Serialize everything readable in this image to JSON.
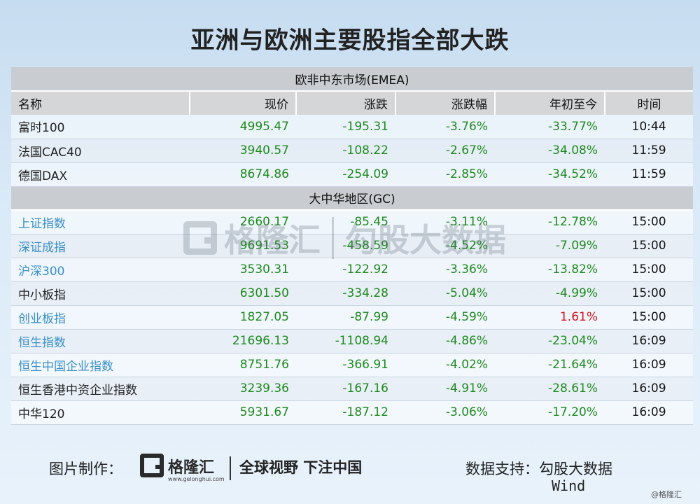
{
  "title": "亚洲与欧洲主要股指全部大跌",
  "sections": [
    {
      "label": "欧非中东市场(EMEA)",
      "rows": [
        {
          "name": "富时100",
          "price": "4995.47",
          "change": "-195.31",
          "pct": "-3.76%",
          "ytd": "-33.77%",
          "time": "10:44",
          "link": false,
          "ytd_red": false
        },
        {
          "name": "法国CAC40",
          "price": "3940.57",
          "change": "-108.22",
          "pct": "-2.67%",
          "ytd": "-34.08%",
          "time": "11:59",
          "link": false,
          "ytd_red": false
        },
        {
          "name": "德国DAX",
          "price": "8674.86",
          "change": "-254.09",
          "pct": "-2.85%",
          "ytd": "-34.52%",
          "time": "11:59",
          "link": false,
          "ytd_red": false
        }
      ]
    },
    {
      "label": "大中华地区(GC)",
      "rows": [
        {
          "name": "上证指数",
          "price": "2660.17",
          "change": "-85.45",
          "pct": "-3.11%",
          "ytd": "-12.78%",
          "time": "15:00",
          "link": true,
          "ytd_red": false
        },
        {
          "name": "深证成指",
          "price": "9691.53",
          "change": "-458.59",
          "pct": "-4.52%",
          "ytd": "-7.09%",
          "time": "15:00",
          "link": true,
          "ytd_red": false
        },
        {
          "name": "沪深300",
          "price": "3530.31",
          "change": "-122.92",
          "pct": "-3.36%",
          "ytd": "-13.82%",
          "time": "15:00",
          "link": true,
          "ytd_red": false
        },
        {
          "name": "中小板指",
          "price": "6301.50",
          "change": "-334.28",
          "pct": "-5.04%",
          "ytd": "-4.99%",
          "time": "15:00",
          "link": false,
          "ytd_red": false
        },
        {
          "name": "创业板指",
          "price": "1827.05",
          "change": "-87.99",
          "pct": "-4.59%",
          "ytd": "1.61%",
          "time": "15:00",
          "link": true,
          "ytd_red": true
        },
        {
          "name": "恒生指数",
          "price": "21696.13",
          "change": "-1108.94",
          "pct": "-4.86%",
          "ytd": "-23.04%",
          "time": "16:09",
          "link": true,
          "ytd_red": false
        },
        {
          "name": "恒生中国企业指数",
          "price": "8751.76",
          "change": "-366.91",
          "pct": "-4.02%",
          "ytd": "-21.64%",
          "time": "16:09",
          "link": true,
          "ytd_red": false
        },
        {
          "name": "恒生香港中资企业指数",
          "price": "3239.36",
          "change": "-167.16",
          "pct": "-4.91%",
          "ytd": "-28.61%",
          "time": "16:09",
          "link": false,
          "ytd_red": false
        },
        {
          "name": "中华120",
          "price": "5931.67",
          "change": "-187.12",
          "pct": "-3.06%",
          "ytd": "-17.20%",
          "time": "16:09",
          "link": false,
          "ytd_red": false
        }
      ]
    }
  ],
  "columns": {
    "name": "名称",
    "price": "现价",
    "change": "涨跌",
    "pct": "涨跌幅",
    "ytd": "年初至今",
    "time": "时间"
  },
  "watermark": {
    "brand": "格隆汇",
    "text": "勾股大数据"
  },
  "footer": {
    "maker_label": "图片制作：",
    "brand": "格隆汇",
    "site": "www.gelonghui.com",
    "slogan": "全球视野 下注中国",
    "support_label": "数据支持：",
    "support_value": "勾股大数据",
    "support_value2": "Wind",
    "credit": "@格隆汇"
  },
  "colors": {
    "green": "#1e8a1e",
    "red": "#d6101a",
    "link": "#3a8fc8"
  }
}
